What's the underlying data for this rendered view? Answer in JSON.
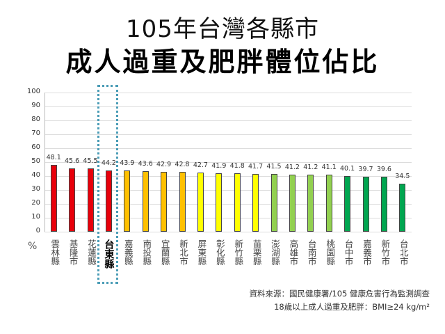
{
  "header": {
    "title_line1": "105年台灣各縣市",
    "title_line2": "成人過重及肥胖體位佔比"
  },
  "chart_data": {
    "type": "bar",
    "title": "105年台灣各縣市 成人過重及肥胖體位佔比",
    "xlabel": "",
    "ylabel": "%",
    "ylim": [
      0,
      100
    ],
    "yticks": [
      0,
      10,
      20,
      30,
      40,
      50,
      60,
      70,
      80,
      90,
      100
    ],
    "grid": true,
    "legend": null,
    "highlighted_category": "台東縣",
    "categories": [
      "雲林縣",
      "基隆市",
      "花蓮縣",
      "台東縣",
      "嘉義縣",
      "南投縣",
      "宜蘭縣",
      "新北市",
      "屏東縣",
      "彰化縣",
      "新竹縣",
      "苗栗縣",
      "澎湖縣",
      "高雄市",
      "台南市",
      "桃園縣",
      "台中市",
      "嘉義市",
      "新竹市",
      "台北市"
    ],
    "values": [
      48.1,
      45.6,
      45.5,
      44.2,
      43.9,
      43.6,
      42.9,
      42.8,
      42.7,
      41.9,
      41.8,
      41.7,
      41.5,
      41.2,
      41.2,
      41.1,
      40.1,
      39.7,
      39.6,
      34.5
    ],
    "bar_colors": [
      "#e8000b",
      "#e8000b",
      "#e8000b",
      "#e8000b",
      "#ffc000",
      "#ffc000",
      "#ffc000",
      "#ffc000",
      "#ffff00",
      "#ffff00",
      "#ffff00",
      "#ffff00",
      "#92d050",
      "#92d050",
      "#92d050",
      "#92d050",
      "#00a650",
      "#00a650",
      "#00a650",
      "#00a650"
    ]
  },
  "axis": {
    "unit_label": "%"
  },
  "footer": {
    "source_line": "資料來源：國民健康署/105 健康危害行為監測調查",
    "definition_line": "18歲以上成人過重及肥胖：BMI≥24 kg/m²"
  },
  "colors": {
    "highlight_border": "#4a9cb6",
    "red": "#e8000b",
    "orange": "#ffc000",
    "yellow": "#ffff00",
    "light_green": "#92d050",
    "green": "#00a650"
  }
}
